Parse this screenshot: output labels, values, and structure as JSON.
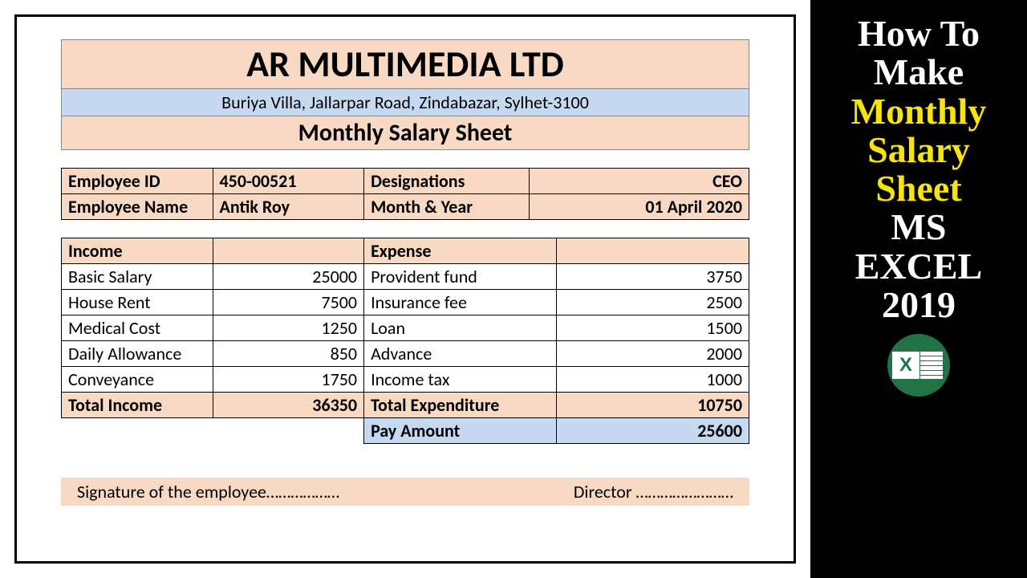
{
  "doc": {
    "company": "AR MULTIMEDIA LTD",
    "address": "Buriya Villa, Jallarpar Road, Zindabazar, Sylhet-3100",
    "sheetTitle": "Monthly Salary Sheet",
    "info": {
      "empIdLabel": "Employee ID",
      "empId": "450-00521",
      "desigLabel": "Designations",
      "desig": "CEO",
      "empNameLabel": "Employee Name",
      "empName": "Antik Roy",
      "monthLabel": "Month & Year",
      "month": "01 April 2020"
    },
    "income": {
      "header": "Income",
      "rows": [
        {
          "label": "Basic Salary",
          "value": "25000"
        },
        {
          "label": "House Rent",
          "value": "7500"
        },
        {
          "label": "Medical Cost",
          "value": "1250"
        },
        {
          "label": "Daily Allowance",
          "value": "850"
        },
        {
          "label": "Conveyance",
          "value": "1750"
        }
      ],
      "totalLabel": "Total Income",
      "total": "36350"
    },
    "expense": {
      "header": "Expense",
      "rows": [
        {
          "label": "Provident fund",
          "value": "3750"
        },
        {
          "label": "Insurance fee",
          "value": "2500"
        },
        {
          "label": "Loan",
          "value": "1500"
        },
        {
          "label": "Advance",
          "value": "2000"
        },
        {
          "label": "Income tax",
          "value": "1000"
        }
      ],
      "totalLabel": "Total Expenditure",
      "total": "10750",
      "payLabel": "Pay Amount",
      "pay": "25600"
    },
    "sig": {
      "employee": "Signature of the employee………………",
      "director": "Director ……………………"
    },
    "colors": {
      "peach": "#f7d9c4",
      "blue": "#c5d9f1",
      "border": "#000000"
    }
  },
  "banner": {
    "l1": "How To",
    "l2": "Make",
    "l3": "Monthly",
    "l4": "Salary",
    "l5": "Sheet",
    "l6": "MS",
    "l7": "EXCEL",
    "l8": "2019"
  }
}
